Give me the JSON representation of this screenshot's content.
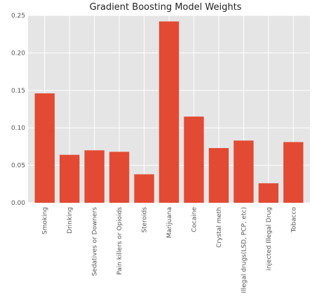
{
  "chart_data": {
    "type": "bar",
    "title": "Gradient Boosting Model Weights",
    "xlabel": "",
    "ylabel": "",
    "categories": [
      "Smoking",
      "Drinking",
      "Sedatives or Downers",
      "Pain killers or Opioids",
      "Steroids",
      "Marijuana",
      "Cocaine",
      "Crystal meth",
      "Illegal drugs(LSD, PCP, etc)",
      "injected Illegal Drug",
      "Tobacco"
    ],
    "values": [
      0.146,
      0.064,
      0.07,
      0.068,
      0.038,
      0.242,
      0.115,
      0.073,
      0.083,
      0.026,
      0.081
    ],
    "ylim": [
      0,
      0.25
    ],
    "yticks": [
      0.0,
      0.05,
      0.1,
      0.15,
      0.2,
      0.25
    ],
    "ytick_labels": [
      "0.00",
      "0.05",
      "0.10",
      "0.15",
      "0.20",
      "0.25"
    ],
    "grid": true,
    "style": "ggplot",
    "colors": {
      "bar": "#e24a33",
      "plot_background": "#e5e5e5",
      "grid": "#ffffff"
    }
  }
}
